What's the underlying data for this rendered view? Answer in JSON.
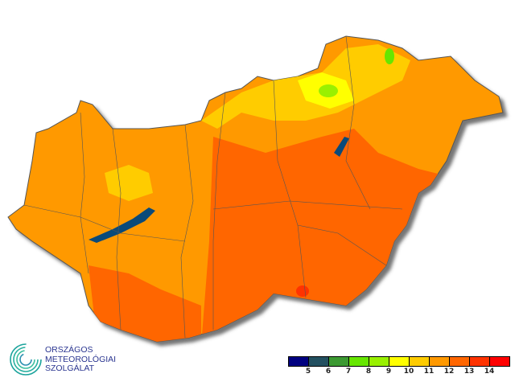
{
  "legend": {
    "colors": [
      "#000080",
      "#235060",
      "#3c9a32",
      "#66e600",
      "#99f000",
      "#ffff00",
      "#ffcc00",
      "#ff9900",
      "#ff6600",
      "#ff3300",
      "#ff0000"
    ],
    "ticks": [
      "5",
      "6",
      "7",
      "8",
      "9",
      "10",
      "11",
      "12",
      "13",
      "14"
    ]
  },
  "logo": {
    "line1": "ORSZÁGOS",
    "line2": "METEOROLÓGIAI",
    "line3": "SZOLGÁLAT"
  },
  "map": {
    "fill_colors": {
      "base": "#ff9900",
      "plain": "#ff6600",
      "hills": "#ffcc00",
      "high": "#ffff00",
      "mountain": "#99f000",
      "peak": "#66e600",
      "water": "#0a4a7a",
      "hot": "#ff3300"
    }
  }
}
